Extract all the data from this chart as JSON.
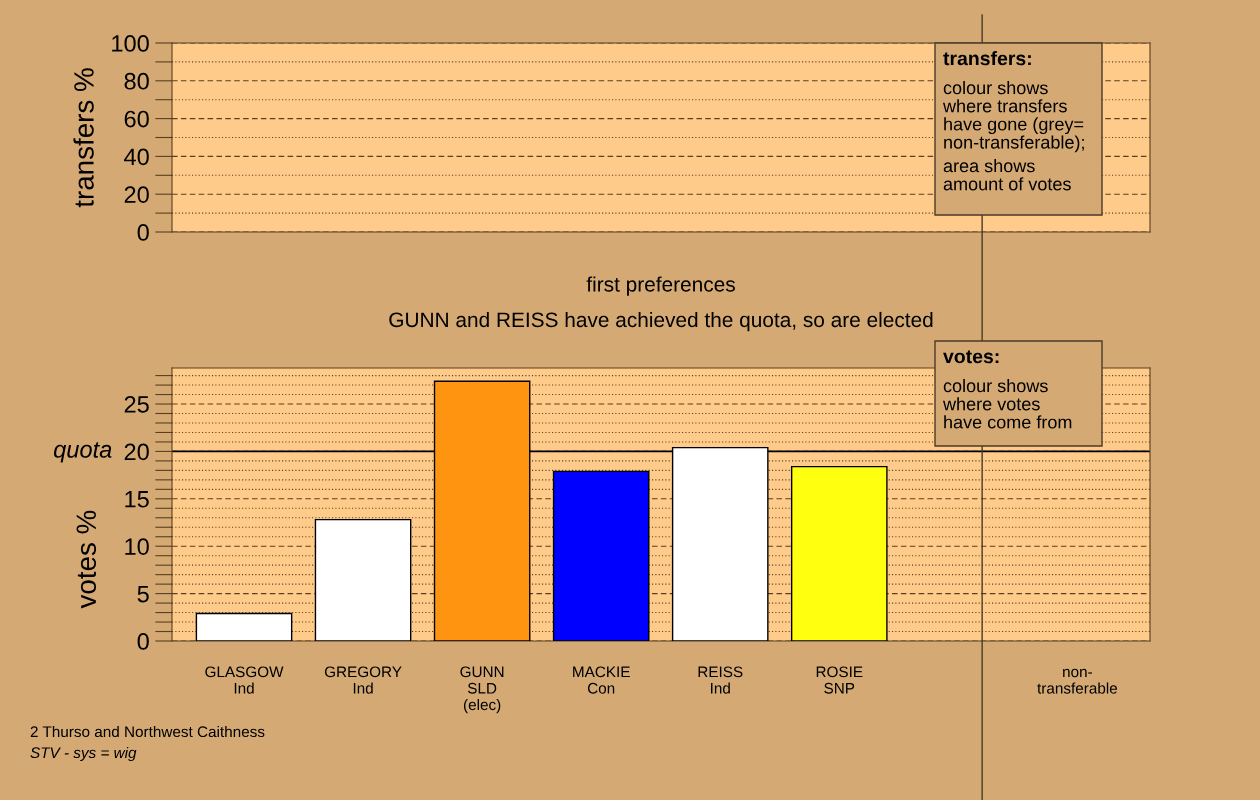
{
  "chart_data": [
    {
      "type": "bar",
      "categories": [
        null,
        null,
        null,
        null,
        null,
        null,
        null,
        null
      ],
      "values": [
        null,
        null,
        null,
        null,
        null,
        null,
        null,
        null
      ],
      "ylabel": "transfers %",
      "ylim": [
        0,
        100
      ],
      "yticks": [
        0,
        {
          "value": 10,
          "label": null
        },
        20,
        {
          "value": 30,
          "label": null
        },
        40,
        {
          "value": 50,
          "label": null
        },
        60,
        {
          "value": 70,
          "label": null
        },
        80,
        {
          "value": 90,
          "label": null
        },
        100
      ],
      "grid": "y",
      "tick_labels": "y",
      "annotations": [
        "transfers:",
        "colour shows\nwhere transfers\nhave gone (grey=\nnon-transferable);",
        "area shows\namount of votes"
      ]
    },
    {
      "type": "bar",
      "title": "first preferences",
      "subtitle": "GUNN and REISS have achieved the quota, so are elected",
      "categories": [
        "GLASGOW\nInd",
        "GREGORY\nInd",
        "GUNN\nSLD\n(elec)",
        "MACKIE\nCon",
        "REISS\nInd",
        "ROSIE\nSNP",
        null,
        "non-\ntransferable"
      ],
      "values": [
        2.9,
        12.8,
        27.4,
        17.9,
        20.4,
        18.4,
        null,
        null
      ],
      "colors": [
        "#ffffff",
        "#ffffff",
        "#ff9410",
        "#0000ff",
        "#ffffff",
        "#ffff10",
        null,
        null
      ],
      "ylabel": "votes %",
      "ylim": [
        0,
        28.8
      ],
      "yticks": [
        0,
        {
          "value": 1,
          "label": null
        },
        {
          "value": 2,
          "label": null
        },
        {
          "value": 3,
          "label": null
        },
        {
          "value": 4,
          "label": null
        },
        5,
        {
          "value": 6,
          "label": null
        },
        {
          "value": 7,
          "label": null
        },
        {
          "value": 8,
          "label": null
        },
        {
          "value": 9,
          "label": null
        },
        10,
        {
          "value": 11,
          "label": null
        },
        {
          "value": 12,
          "label": null
        },
        {
          "value": 13,
          "label": null
        },
        {
          "value": 14,
          "label": null
        },
        15,
        {
          "value": 16,
          "label": null
        },
        {
          "value": 17,
          "label": null
        },
        {
          "value": 18,
          "label": null
        },
        {
          "value": 19,
          "label": null
        },
        20,
        {
          "value": 21,
          "label": null
        },
        {
          "value": 22,
          "label": null
        },
        {
          "value": 23,
          "label": null
        },
        {
          "value": 24,
          "label": null
        },
        25,
        {
          "value": 26,
          "label": null
        },
        {
          "value": 27,
          "label": null
        },
        {
          "value": 28,
          "label": null
        }
      ],
      "grid": "y",
      "ref_lines": [
        {
          "axis": "y",
          "value": 20,
          "label": "quota",
          "color": "#000000",
          "line_style": "solid"
        }
      ],
      "annotations": [
        "votes:",
        "colour shows\nwhere votes\nhave come from",
        "2 Thurso and Northwest Caithness",
        "STV - sys = wig"
      ]
    }
  ]
}
